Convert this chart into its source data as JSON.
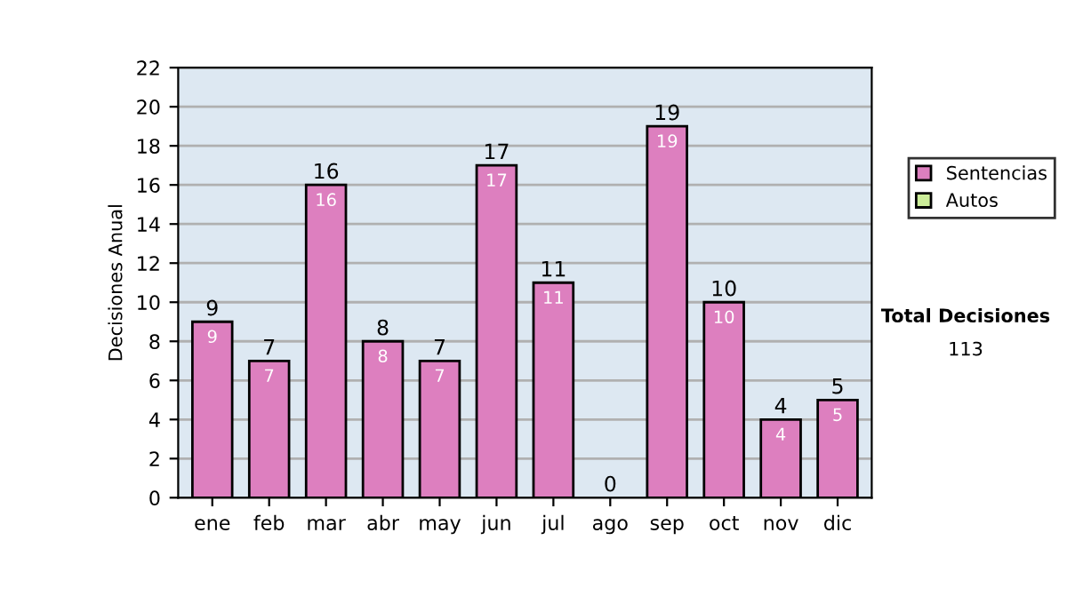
{
  "chart_data": {
    "type": "bar",
    "ylabel": "Decisiones Anual",
    "categories": [
      "ene",
      "feb",
      "mar",
      "abr",
      "may",
      "jun",
      "jul",
      "ago",
      "sep",
      "oct",
      "nov",
      "dic"
    ],
    "series": [
      {
        "name": "Sentencias",
        "color": "#dd7fbf",
        "values": [
          9,
          7,
          16,
          8,
          7,
          17,
          11,
          0,
          19,
          10,
          4,
          5
        ],
        "value_labels": [
          "9",
          "7",
          "16",
          "8",
          "7",
          "17",
          "11",
          null,
          "19",
          "10",
          "4",
          "5"
        ]
      },
      {
        "name": "Autos",
        "color": "#ccee99",
        "values": [
          null,
          null,
          null,
          null,
          null,
          null,
          null,
          null,
          null,
          null,
          null,
          null
        ]
      }
    ],
    "totals": [
      "9",
      "7",
      "16",
      "8",
      "7",
      "17",
      "11",
      "0",
      "19",
      "10",
      "4",
      "5"
    ],
    "ylim": [
      0,
      22
    ],
    "yticks": [
      0,
      2,
      4,
      6,
      8,
      10,
      12,
      14,
      16,
      18,
      20,
      22
    ],
    "grid": "y",
    "legend": "right",
    "annotations": [
      "Total Decisiones",
      "113"
    ]
  }
}
